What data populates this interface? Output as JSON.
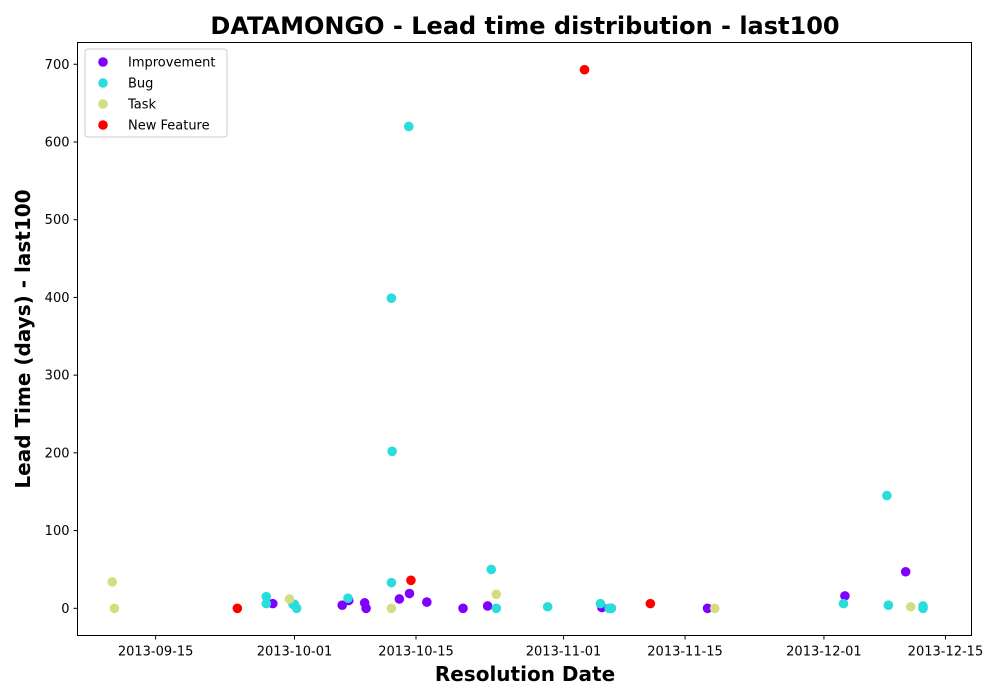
{
  "chart_data": {
    "type": "scatter",
    "title": "DATAMONGO - Lead time distribution - last100",
    "xlabel": "Resolution Date",
    "ylabel": "Lead Time (days) - last100",
    "x_type": "date",
    "xlim": [
      "2013-09-06",
      "2013-12-18"
    ],
    "ylim": [
      -35,
      728
    ],
    "x_ticks": [
      "2013-09-15",
      "2013-10-01",
      "2013-10-15",
      "2013-11-01",
      "2013-11-15",
      "2013-12-01",
      "2013-12-15"
    ],
    "y_ticks": [
      0,
      100,
      200,
      300,
      400,
      500,
      600,
      700
    ],
    "grid": false,
    "legend": "top-left",
    "series": [
      {
        "name": "Improvement",
        "color": "#8000ff",
        "points": [
          {
            "x": "2013-09-28 12:00",
            "y": 6
          },
          {
            "x": "2013-10-06 12:00",
            "y": 4
          },
          {
            "x": "2013-10-07 06:00",
            "y": 10
          },
          {
            "x": "2013-10-09 02:00",
            "y": 7
          },
          {
            "x": "2013-10-09 06:00",
            "y": 0
          },
          {
            "x": "2013-10-13 02:00",
            "y": 12
          },
          {
            "x": "2013-10-14 06:00",
            "y": 19
          },
          {
            "x": "2013-10-16 06:00",
            "y": 8
          },
          {
            "x": "2013-10-20 10:00",
            "y": 0
          },
          {
            "x": "2013-10-23 06:00",
            "y": 3
          },
          {
            "x": "2013-11-05 10:00",
            "y": 1
          },
          {
            "x": "2013-11-06 12:00",
            "y": 0
          },
          {
            "x": "2013-11-17 14:00",
            "y": 0
          },
          {
            "x": "2013-12-03 10:00",
            "y": 16
          },
          {
            "x": "2013-12-10 10:00",
            "y": 47
          }
        ]
      },
      {
        "name": "Bug",
        "color": "#2adddd",
        "points": [
          {
            "x": "2013-09-27 18:00",
            "y": 15
          },
          {
            "x": "2013-09-27 18:00",
            "y": 6
          },
          {
            "x": "2013-09-30 20:00",
            "y": 5
          },
          {
            "x": "2013-10-01 00:00",
            "y": 5
          },
          {
            "x": "2013-10-01 06:00",
            "y": 0
          },
          {
            "x": "2013-10-07 04:00",
            "y": 13
          },
          {
            "x": "2013-10-12 04:00",
            "y": 399
          },
          {
            "x": "2013-10-12 04:00",
            "y": 33
          },
          {
            "x": "2013-10-12 06:00",
            "y": 202
          },
          {
            "x": "2013-10-14 04:00",
            "y": 620
          },
          {
            "x": "2013-10-23 16:00",
            "y": 50
          },
          {
            "x": "2013-10-24 06:00",
            "y": 0
          },
          {
            "x": "2013-10-30 04:00",
            "y": 2
          },
          {
            "x": "2013-11-05 06:00",
            "y": 6
          },
          {
            "x": "2013-11-06 06:00",
            "y": 0
          },
          {
            "x": "2013-11-06 12:00",
            "y": 0
          },
          {
            "x": "2013-12-03 06:00",
            "y": 6
          },
          {
            "x": "2013-12-08 06:00",
            "y": 145
          },
          {
            "x": "2013-12-08 10:00",
            "y": 4
          },
          {
            "x": "2013-12-12 10:00",
            "y": 3
          },
          {
            "x": "2013-12-12 10:00",
            "y": 0
          }
        ]
      },
      {
        "name": "Task",
        "color": "#d4dd80",
        "points": [
          {
            "x": "2013-09-10 00:00",
            "y": 34
          },
          {
            "x": "2013-09-10 06:00",
            "y": 0
          },
          {
            "x": "2013-09-30 10:00",
            "y": 12
          },
          {
            "x": "2013-10-12 04:00",
            "y": 0
          },
          {
            "x": "2013-10-24 06:00",
            "y": 18
          },
          {
            "x": "2013-11-18 10:00",
            "y": 0
          },
          {
            "x": "2013-12-11 00:00",
            "y": 2
          }
        ]
      },
      {
        "name": "New Feature",
        "color": "#ff0000",
        "points": [
          {
            "x": "2013-09-24 10:00",
            "y": 0
          },
          {
            "x": "2013-10-14 10:00",
            "y": 36
          },
          {
            "x": "2013-11-03 10:00",
            "y": 693
          },
          {
            "x": "2013-11-11 00:00",
            "y": 6
          }
        ]
      }
    ]
  }
}
